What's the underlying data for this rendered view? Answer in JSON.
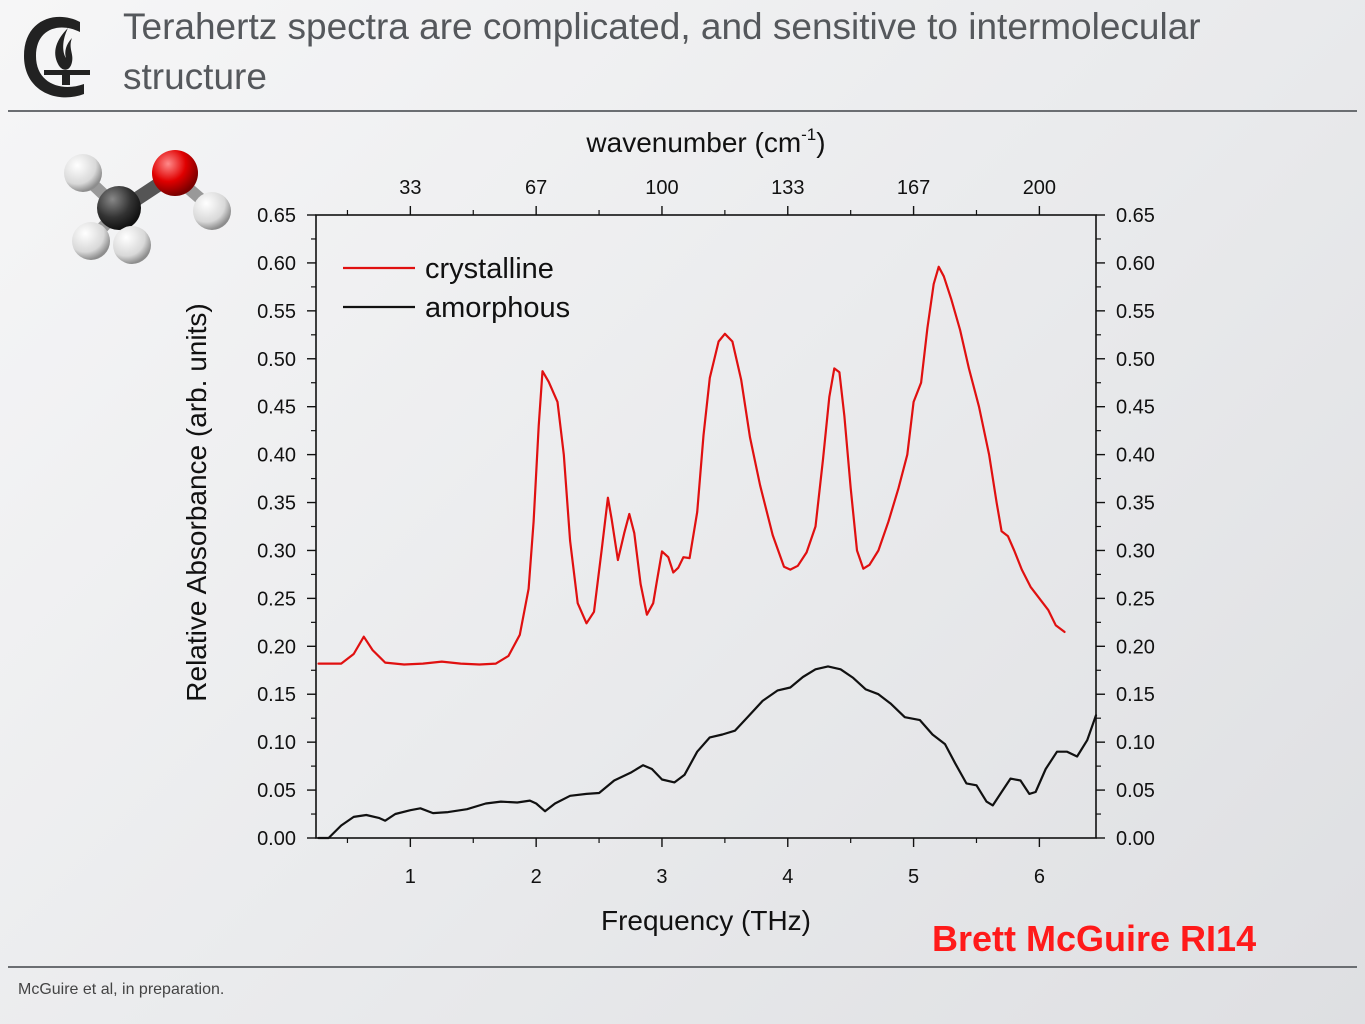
{
  "header": {
    "title": "Terahertz spectra are complicated, and sensitive to intermolecular structure"
  },
  "logo": {
    "icon": "college-flame-logo"
  },
  "molecule": {
    "icon": "methanol-molecule-icon",
    "atom_labels": []
  },
  "footer": {
    "citation": "McGuire et al, in preparation.",
    "author": "Brett McGuire RI14",
    "author_color": "#ff1a1a"
  },
  "chart_data": {
    "type": "line",
    "title": "",
    "xlabel": "Frequency (THz)",
    "x2label_base": "wavenumber (cm",
    "x2label_sup": "-1",
    "x2label_end": ")",
    "ylabel": "Relative Absorbance (arb. units)",
    "xlim": [
      0.25,
      6.45
    ],
    "ylim": [
      0,
      0.65
    ],
    "x_ticks": [
      1,
      2,
      3,
      4,
      5,
      6
    ],
    "x_tick_labels": [
      "1",
      "2",
      "3",
      "4",
      "5",
      "6"
    ],
    "x2_ticks": [
      1,
      2,
      3,
      4,
      5,
      6
    ],
    "x2_tick_labels": [
      "33",
      "67",
      "100",
      "133",
      "167",
      "200"
    ],
    "y_ticks": [
      0,
      0.05,
      0.1,
      0.15,
      0.2,
      0.25,
      0.3,
      0.35,
      0.4,
      0.45,
      0.5,
      0.55,
      0.6,
      0.65
    ],
    "y_tick_labels": [
      "0.00",
      "0.05",
      "0.10",
      "0.15",
      "0.20",
      "0.25",
      "0.30",
      "0.35",
      "0.40",
      "0.45",
      "0.50",
      "0.55",
      "0.60",
      "0.65"
    ],
    "grid": false,
    "legend": "top-left",
    "series": [
      {
        "name": "crystalline",
        "color": "#e01010",
        "points": [
          [
            0.27,
            0.182
          ],
          [
            0.45,
            0.182
          ],
          [
            0.55,
            0.192
          ],
          [
            0.63,
            0.21
          ],
          [
            0.7,
            0.196
          ],
          [
            0.8,
            0.183
          ],
          [
            0.95,
            0.181
          ],
          [
            1.1,
            0.182
          ],
          [
            1.25,
            0.184
          ],
          [
            1.4,
            0.182
          ],
          [
            1.55,
            0.181
          ],
          [
            1.68,
            0.182
          ],
          [
            1.78,
            0.19
          ],
          [
            1.87,
            0.212
          ],
          [
            1.94,
            0.26
          ],
          [
            1.98,
            0.33
          ],
          [
            2.02,
            0.43
          ],
          [
            2.05,
            0.487
          ],
          [
            2.1,
            0.476
          ],
          [
            2.17,
            0.455
          ],
          [
            2.22,
            0.4
          ],
          [
            2.27,
            0.31
          ],
          [
            2.33,
            0.245
          ],
          [
            2.4,
            0.224
          ],
          [
            2.46,
            0.236
          ],
          [
            2.52,
            0.3
          ],
          [
            2.57,
            0.355
          ],
          [
            2.6,
            0.333
          ],
          [
            2.65,
            0.29
          ],
          [
            2.7,
            0.318
          ],
          [
            2.74,
            0.338
          ],
          [
            2.78,
            0.318
          ],
          [
            2.83,
            0.265
          ],
          [
            2.88,
            0.233
          ],
          [
            2.93,
            0.245
          ],
          [
            2.96,
            0.268
          ],
          [
            3.0,
            0.299
          ],
          [
            3.05,
            0.293
          ],
          [
            3.09,
            0.277
          ],
          [
            3.13,
            0.282
          ],
          [
            3.17,
            0.293
          ],
          [
            3.22,
            0.292
          ],
          [
            3.28,
            0.34
          ],
          [
            3.33,
            0.42
          ],
          [
            3.38,
            0.48
          ],
          [
            3.45,
            0.518
          ],
          [
            3.5,
            0.526
          ],
          [
            3.56,
            0.518
          ],
          [
            3.63,
            0.478
          ],
          [
            3.7,
            0.418
          ],
          [
            3.78,
            0.368
          ],
          [
            3.88,
            0.316
          ],
          [
            3.97,
            0.283
          ],
          [
            4.02,
            0.28
          ],
          [
            4.08,
            0.284
          ],
          [
            4.15,
            0.298
          ],
          [
            4.22,
            0.325
          ],
          [
            4.28,
            0.395
          ],
          [
            4.33,
            0.46
          ],
          [
            4.37,
            0.49
          ],
          [
            4.41,
            0.486
          ],
          [
            4.45,
            0.44
          ],
          [
            4.5,
            0.365
          ],
          [
            4.55,
            0.3
          ],
          [
            4.6,
            0.281
          ],
          [
            4.65,
            0.285
          ],
          [
            4.72,
            0.3
          ],
          [
            4.8,
            0.33
          ],
          [
            4.88,
            0.365
          ],
          [
            4.95,
            0.4
          ],
          [
            5.0,
            0.455
          ],
          [
            5.06,
            0.475
          ],
          [
            5.11,
            0.532
          ],
          [
            5.16,
            0.578
          ],
          [
            5.2,
            0.596
          ],
          [
            5.24,
            0.586
          ],
          [
            5.3,
            0.562
          ],
          [
            5.37,
            0.53
          ],
          [
            5.44,
            0.49
          ],
          [
            5.52,
            0.45
          ],
          [
            5.6,
            0.4
          ],
          [
            5.66,
            0.35
          ],
          [
            5.7,
            0.32
          ],
          [
            5.75,
            0.315
          ],
          [
            5.8,
            0.3
          ],
          [
            5.86,
            0.28
          ],
          [
            5.93,
            0.262
          ],
          [
            6.0,
            0.25
          ],
          [
            6.07,
            0.238
          ],
          [
            6.13,
            0.222
          ],
          [
            6.2,
            0.215
          ]
        ]
      },
      {
        "name": "amorphous",
        "color": "#111111",
        "points": [
          [
            0.27,
            0.0
          ],
          [
            0.35,
            0.0
          ],
          [
            0.45,
            0.013
          ],
          [
            0.55,
            0.022
          ],
          [
            0.65,
            0.024
          ],
          [
            0.75,
            0.021
          ],
          [
            0.8,
            0.018
          ],
          [
            0.88,
            0.025
          ],
          [
            1.0,
            0.029
          ],
          [
            1.08,
            0.031
          ],
          [
            1.18,
            0.026
          ],
          [
            1.3,
            0.027
          ],
          [
            1.45,
            0.03
          ],
          [
            1.6,
            0.036
          ],
          [
            1.72,
            0.038
          ],
          [
            1.85,
            0.037
          ],
          [
            1.95,
            0.039
          ],
          [
            2.0,
            0.036
          ],
          [
            2.07,
            0.028
          ],
          [
            2.15,
            0.036
          ],
          [
            2.27,
            0.044
          ],
          [
            2.4,
            0.046
          ],
          [
            2.5,
            0.047
          ],
          [
            2.62,
            0.06
          ],
          [
            2.75,
            0.068
          ],
          [
            2.85,
            0.076
          ],
          [
            2.92,
            0.072
          ],
          [
            3.0,
            0.061
          ],
          [
            3.1,
            0.058
          ],
          [
            3.18,
            0.066
          ],
          [
            3.28,
            0.09
          ],
          [
            3.38,
            0.105
          ],
          [
            3.48,
            0.108
          ],
          [
            3.58,
            0.112
          ],
          [
            3.68,
            0.126
          ],
          [
            3.8,
            0.143
          ],
          [
            3.92,
            0.154
          ],
          [
            4.02,
            0.157
          ],
          [
            4.12,
            0.168
          ],
          [
            4.22,
            0.176
          ],
          [
            4.32,
            0.179
          ],
          [
            4.42,
            0.176
          ],
          [
            4.52,
            0.167
          ],
          [
            4.62,
            0.155
          ],
          [
            4.72,
            0.15
          ],
          [
            4.82,
            0.14
          ],
          [
            4.93,
            0.126
          ],
          [
            5.05,
            0.123
          ],
          [
            5.15,
            0.108
          ],
          [
            5.25,
            0.098
          ],
          [
            5.33,
            0.078
          ],
          [
            5.42,
            0.057
          ],
          [
            5.5,
            0.055
          ],
          [
            5.58,
            0.038
          ],
          [
            5.63,
            0.034
          ],
          [
            5.7,
            0.048
          ],
          [
            5.77,
            0.062
          ],
          [
            5.85,
            0.06
          ],
          [
            5.92,
            0.046
          ],
          [
            5.97,
            0.048
          ],
          [
            6.05,
            0.072
          ],
          [
            6.14,
            0.09
          ],
          [
            6.22,
            0.09
          ],
          [
            6.3,
            0.085
          ],
          [
            6.38,
            0.102
          ],
          [
            6.45,
            0.128
          ]
        ]
      }
    ]
  }
}
